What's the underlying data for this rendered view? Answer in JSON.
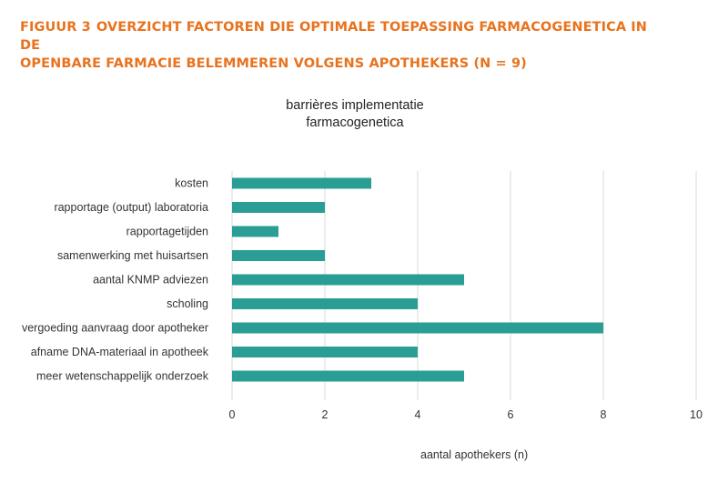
{
  "heading": {
    "figure_number": "FIGUUR 3",
    "line1": "OVERZICHT FACTOREN DIE OPTIMALE TOEPASSING FARMACOGENETICA IN DE",
    "line2": "OPENBARE FARMACIE BELEMMEREN VOLGENS APOTHEKERS (N = 9)"
  },
  "colors": {
    "heading": "#E8731E",
    "bar": "#2A9D94",
    "grid": "#D9D9D9",
    "text": "#333333"
  },
  "chart_data": {
    "type": "bar",
    "orientation": "horizontal",
    "title_line1": "barrières implementatie",
    "title_line2": "farmacogenetica",
    "xlabel": "aantal apothekers (n)",
    "ylabel": "",
    "xlim": [
      0,
      10
    ],
    "xticks": [
      0,
      2,
      4,
      6,
      8,
      10
    ],
    "grid": "vertical",
    "legend": "none",
    "categories": [
      "kosten",
      "rapportage (output) laboratoria",
      "rapportagetijden",
      "samenwerking met huisartsen",
      "aantal KNMP adviezen",
      "scholing",
      "vergoeding aanvraag door apotheker",
      "afname DNA-materiaal in apotheek",
      "meer wetenschappelijk onderzoek"
    ],
    "values": [
      3,
      2,
      1,
      2,
      5,
      4,
      8,
      4,
      5
    ]
  }
}
